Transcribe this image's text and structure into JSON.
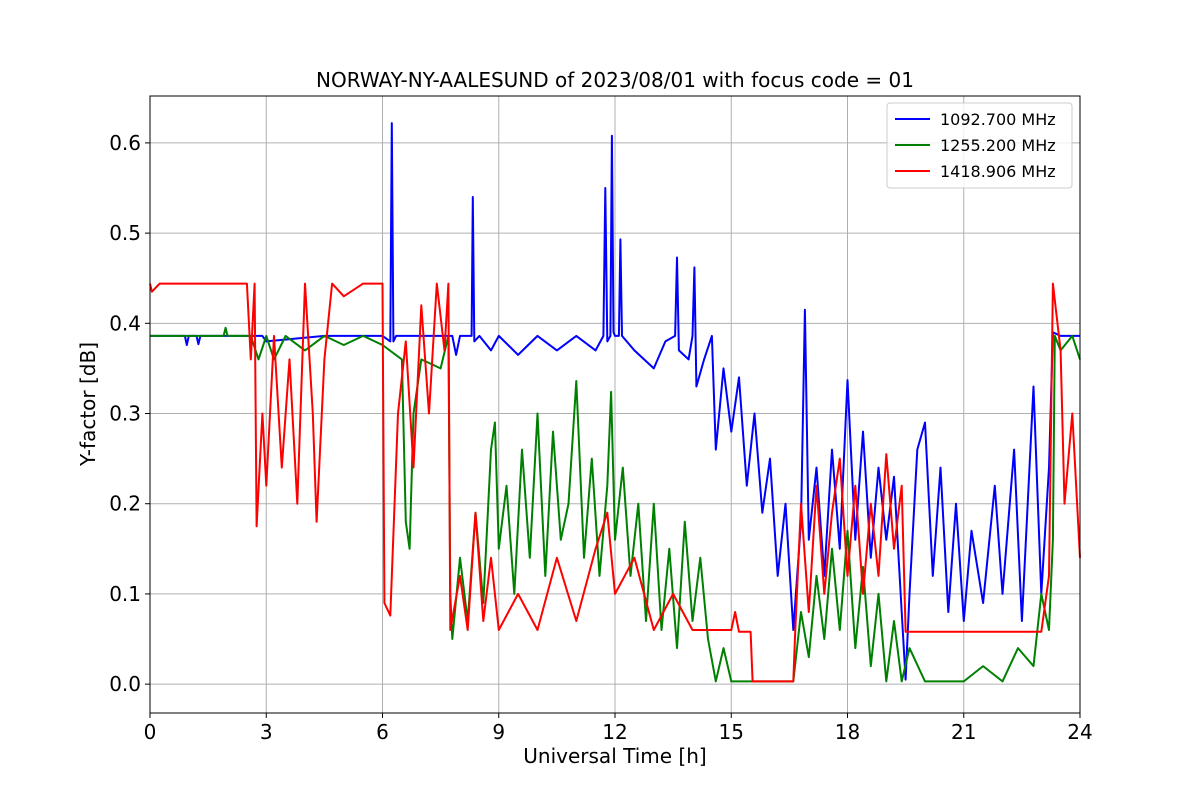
{
  "chart_data": {
    "type": "line",
    "title": "NORWAY-NY-AALESUND of 2023/08/01 with focus code = 01",
    "xlabel": "Universal Time [h]",
    "ylabel": "Y-factor [dB]",
    "xlim": [
      0,
      24
    ],
    "ylim": [
      -0.032,
      0.652
    ],
    "x_ticks": [
      0,
      3,
      6,
      9,
      12,
      15,
      18,
      21,
      24
    ],
    "x_tick_labels": [
      "0",
      "3",
      "6",
      "9",
      "12",
      "15",
      "18",
      "21",
      "24"
    ],
    "y_ticks": [
      0.0,
      0.1,
      0.2,
      0.3,
      0.4,
      0.5,
      0.6
    ],
    "y_tick_labels": [
      "0.0",
      "0.1",
      "0.2",
      "0.3",
      "0.4",
      "0.5",
      "0.6"
    ],
    "grid": true,
    "legend_position": "top-right",
    "series": [
      {
        "name": "1092.700 MHz",
        "color": "#0000ff",
        "points": [
          [
            0.0,
            0.386
          ],
          [
            0.9,
            0.386
          ],
          [
            0.95,
            0.376
          ],
          [
            1.0,
            0.386
          ],
          [
            1.2,
            0.386
          ],
          [
            1.25,
            0.377
          ],
          [
            1.3,
            0.386
          ],
          [
            2.6,
            0.386
          ],
          [
            2.9,
            0.386
          ],
          [
            3.0,
            0.38
          ],
          [
            4.5,
            0.386
          ],
          [
            6.0,
            0.386
          ],
          [
            6.2,
            0.38
          ],
          [
            6.24,
            0.622
          ],
          [
            6.28,
            0.38
          ],
          [
            6.35,
            0.386
          ],
          [
            7.5,
            0.386
          ],
          [
            7.8,
            0.386
          ],
          [
            7.9,
            0.365
          ],
          [
            8.0,
            0.386
          ],
          [
            8.3,
            0.386
          ],
          [
            8.33,
            0.54
          ],
          [
            8.37,
            0.38
          ],
          [
            8.5,
            0.386
          ],
          [
            8.8,
            0.37
          ],
          [
            9.0,
            0.386
          ],
          [
            9.5,
            0.365
          ],
          [
            10.0,
            0.386
          ],
          [
            10.5,
            0.37
          ],
          [
            11.0,
            0.386
          ],
          [
            11.5,
            0.37
          ],
          [
            11.7,
            0.386
          ],
          [
            11.75,
            0.55
          ],
          [
            11.8,
            0.38
          ],
          [
            11.88,
            0.386
          ],
          [
            11.92,
            0.608
          ],
          [
            11.96,
            0.39
          ],
          [
            12.0,
            0.386
          ],
          [
            12.1,
            0.386
          ],
          [
            12.14,
            0.493
          ],
          [
            12.18,
            0.386
          ],
          [
            12.5,
            0.37
          ],
          [
            13.0,
            0.35
          ],
          [
            13.3,
            0.38
          ],
          [
            13.55,
            0.386
          ],
          [
            13.6,
            0.473
          ],
          [
            13.65,
            0.37
          ],
          [
            13.9,
            0.36
          ],
          [
            14.0,
            0.386
          ],
          [
            14.05,
            0.462
          ],
          [
            14.1,
            0.33
          ],
          [
            14.3,
            0.36
          ],
          [
            14.5,
            0.386
          ],
          [
            14.6,
            0.26
          ],
          [
            14.8,
            0.35
          ],
          [
            15.0,
            0.28
          ],
          [
            15.2,
            0.34
          ],
          [
            15.4,
            0.22
          ],
          [
            15.6,
            0.3
          ],
          [
            15.8,
            0.19
          ],
          [
            16.0,
            0.25
          ],
          [
            16.2,
            0.12
          ],
          [
            16.4,
            0.2
          ],
          [
            16.6,
            0.06
          ],
          [
            16.8,
            0.18
          ],
          [
            16.9,
            0.415
          ],
          [
            17.0,
            0.16
          ],
          [
            17.2,
            0.24
          ],
          [
            17.4,
            0.12
          ],
          [
            17.6,
            0.26
          ],
          [
            17.8,
            0.15
          ],
          [
            18.0,
            0.337
          ],
          [
            18.2,
            0.16
          ],
          [
            18.4,
            0.28
          ],
          [
            18.6,
            0.14
          ],
          [
            18.8,
            0.24
          ],
          [
            19.0,
            0.16
          ],
          [
            19.2,
            0.23
          ],
          [
            19.4,
            0.08
          ],
          [
            19.5,
            0.005
          ],
          [
            19.6,
            0.1
          ],
          [
            19.8,
            0.26
          ],
          [
            20.0,
            0.29
          ],
          [
            20.2,
            0.12
          ],
          [
            20.4,
            0.24
          ],
          [
            20.6,
            0.08
          ],
          [
            20.8,
            0.2
          ],
          [
            21.0,
            0.07
          ],
          [
            21.2,
            0.17
          ],
          [
            21.5,
            0.09
          ],
          [
            21.8,
            0.22
          ],
          [
            22.0,
            0.1
          ],
          [
            22.3,
            0.26
          ],
          [
            22.5,
            0.07
          ],
          [
            22.8,
            0.33
          ],
          [
            23.0,
            0.1
          ],
          [
            23.2,
            0.24
          ],
          [
            23.3,
            0.39
          ],
          [
            23.5,
            0.386
          ],
          [
            24.0,
            0.386
          ]
        ]
      },
      {
        "name": "1255.200 MHz",
        "color": "#008000",
        "points": [
          [
            0.0,
            0.386
          ],
          [
            1.9,
            0.386
          ],
          [
            1.95,
            0.395
          ],
          [
            2.0,
            0.386
          ],
          [
            2.6,
            0.386
          ],
          [
            2.8,
            0.36
          ],
          [
            3.0,
            0.386
          ],
          [
            3.2,
            0.36
          ],
          [
            3.5,
            0.386
          ],
          [
            4.0,
            0.37
          ],
          [
            4.5,
            0.386
          ],
          [
            5.0,
            0.376
          ],
          [
            5.5,
            0.386
          ],
          [
            6.0,
            0.376
          ],
          [
            6.5,
            0.36
          ],
          [
            6.6,
            0.18
          ],
          [
            6.7,
            0.15
          ],
          [
            6.8,
            0.3
          ],
          [
            7.0,
            0.36
          ],
          [
            7.5,
            0.35
          ],
          [
            7.7,
            0.386
          ],
          [
            7.75,
            0.1
          ],
          [
            7.8,
            0.05
          ],
          [
            8.0,
            0.14
          ],
          [
            8.2,
            0.07
          ],
          [
            8.4,
            0.19
          ],
          [
            8.6,
            0.09
          ],
          [
            8.8,
            0.26
          ],
          [
            8.9,
            0.29
          ],
          [
            9.0,
            0.15
          ],
          [
            9.2,
            0.22
          ],
          [
            9.4,
            0.1
          ],
          [
            9.6,
            0.26
          ],
          [
            9.8,
            0.14
          ],
          [
            10.0,
            0.3
          ],
          [
            10.2,
            0.12
          ],
          [
            10.4,
            0.28
          ],
          [
            10.6,
            0.16
          ],
          [
            10.8,
            0.2
          ],
          [
            11.0,
            0.336
          ],
          [
            11.2,
            0.14
          ],
          [
            11.4,
            0.25
          ],
          [
            11.6,
            0.12
          ],
          [
            11.8,
            0.22
          ],
          [
            11.9,
            0.324
          ],
          [
            12.0,
            0.16
          ],
          [
            12.2,
            0.24
          ],
          [
            12.4,
            0.12
          ],
          [
            12.6,
            0.2
          ],
          [
            12.8,
            0.07
          ],
          [
            13.0,
            0.2
          ],
          [
            13.2,
            0.06
          ],
          [
            13.4,
            0.15
          ],
          [
            13.6,
            0.04
          ],
          [
            13.8,
            0.18
          ],
          [
            14.0,
            0.07
          ],
          [
            14.2,
            0.14
          ],
          [
            14.4,
            0.05
          ],
          [
            14.6,
            0.003
          ],
          [
            14.8,
            0.04
          ],
          [
            15.0,
            0.003
          ],
          [
            15.5,
            0.003
          ],
          [
            16.0,
            0.003
          ],
          [
            16.6,
            0.003
          ],
          [
            16.8,
            0.08
          ],
          [
            17.0,
            0.03
          ],
          [
            17.2,
            0.12
          ],
          [
            17.4,
            0.05
          ],
          [
            17.6,
            0.15
          ],
          [
            17.8,
            0.06
          ],
          [
            18.0,
            0.17
          ],
          [
            18.2,
            0.04
          ],
          [
            18.4,
            0.13
          ],
          [
            18.6,
            0.02
          ],
          [
            18.8,
            0.1
          ],
          [
            19.0,
            0.003
          ],
          [
            19.2,
            0.07
          ],
          [
            19.4,
            0.003
          ],
          [
            19.6,
            0.04
          ],
          [
            20.0,
            0.003
          ],
          [
            20.5,
            0.003
          ],
          [
            21.0,
            0.003
          ],
          [
            21.5,
            0.02
          ],
          [
            22.0,
            0.003
          ],
          [
            22.4,
            0.04
          ],
          [
            22.8,
            0.02
          ],
          [
            23.0,
            0.1
          ],
          [
            23.2,
            0.06
          ],
          [
            23.3,
            0.16
          ],
          [
            23.35,
            0.386
          ],
          [
            23.5,
            0.37
          ],
          [
            23.8,
            0.386
          ],
          [
            24.0,
            0.36
          ]
        ]
      },
      {
        "name": "1418.906 MHz",
        "color": "#ff0000",
        "points": [
          [
            0.0,
            0.444
          ],
          [
            0.05,
            0.435
          ],
          [
            0.25,
            0.444
          ],
          [
            2.5,
            0.444
          ],
          [
            2.6,
            0.36
          ],
          [
            2.7,
            0.444
          ],
          [
            2.75,
            0.175
          ],
          [
            2.9,
            0.3
          ],
          [
            3.0,
            0.22
          ],
          [
            3.2,
            0.386
          ],
          [
            3.4,
            0.24
          ],
          [
            3.6,
            0.36
          ],
          [
            3.8,
            0.2
          ],
          [
            4.0,
            0.444
          ],
          [
            4.2,
            0.3
          ],
          [
            4.3,
            0.18
          ],
          [
            4.5,
            0.36
          ],
          [
            4.7,
            0.444
          ],
          [
            5.0,
            0.43
          ],
          [
            5.5,
            0.444
          ],
          [
            6.0,
            0.444
          ],
          [
            6.05,
            0.09
          ],
          [
            6.2,
            0.076
          ],
          [
            6.4,
            0.3
          ],
          [
            6.6,
            0.38
          ],
          [
            6.8,
            0.24
          ],
          [
            7.0,
            0.42
          ],
          [
            7.2,
            0.3
          ],
          [
            7.4,
            0.444
          ],
          [
            7.6,
            0.37
          ],
          [
            7.7,
            0.444
          ],
          [
            7.75,
            0.06
          ],
          [
            8.0,
            0.12
          ],
          [
            8.2,
            0.06
          ],
          [
            8.4,
            0.19
          ],
          [
            8.6,
            0.07
          ],
          [
            8.8,
            0.14
          ],
          [
            9.0,
            0.06
          ],
          [
            9.5,
            0.1
          ],
          [
            10.0,
            0.06
          ],
          [
            10.5,
            0.14
          ],
          [
            11.0,
            0.07
          ],
          [
            11.5,
            0.15
          ],
          [
            11.8,
            0.19
          ],
          [
            12.0,
            0.1
          ],
          [
            12.5,
            0.14
          ],
          [
            13.0,
            0.06
          ],
          [
            13.5,
            0.1
          ],
          [
            14.0,
            0.06
          ],
          [
            14.5,
            0.06
          ],
          [
            15.0,
            0.06
          ],
          [
            15.1,
            0.08
          ],
          [
            15.2,
            0.058
          ],
          [
            15.5,
            0.058
          ],
          [
            15.55,
            0.003
          ],
          [
            16.0,
            0.003
          ],
          [
            16.6,
            0.003
          ],
          [
            16.65,
            0.058
          ],
          [
            16.8,
            0.2
          ],
          [
            17.0,
            0.08
          ],
          [
            17.2,
            0.22
          ],
          [
            17.4,
            0.1
          ],
          [
            17.6,
            0.19
          ],
          [
            17.8,
            0.25
          ],
          [
            18.0,
            0.12
          ],
          [
            18.2,
            0.22
          ],
          [
            18.4,
            0.1
          ],
          [
            18.6,
            0.2
          ],
          [
            18.8,
            0.12
          ],
          [
            19.0,
            0.255
          ],
          [
            19.2,
            0.15
          ],
          [
            19.4,
            0.22
          ],
          [
            19.5,
            0.058
          ],
          [
            20.0,
            0.058
          ],
          [
            21.0,
            0.058
          ],
          [
            22.0,
            0.058
          ],
          [
            23.0,
            0.058
          ],
          [
            23.2,
            0.12
          ],
          [
            23.3,
            0.444
          ],
          [
            23.5,
            0.37
          ],
          [
            23.6,
            0.2
          ],
          [
            23.8,
            0.3
          ],
          [
            24.0,
            0.14
          ]
        ]
      }
    ]
  }
}
